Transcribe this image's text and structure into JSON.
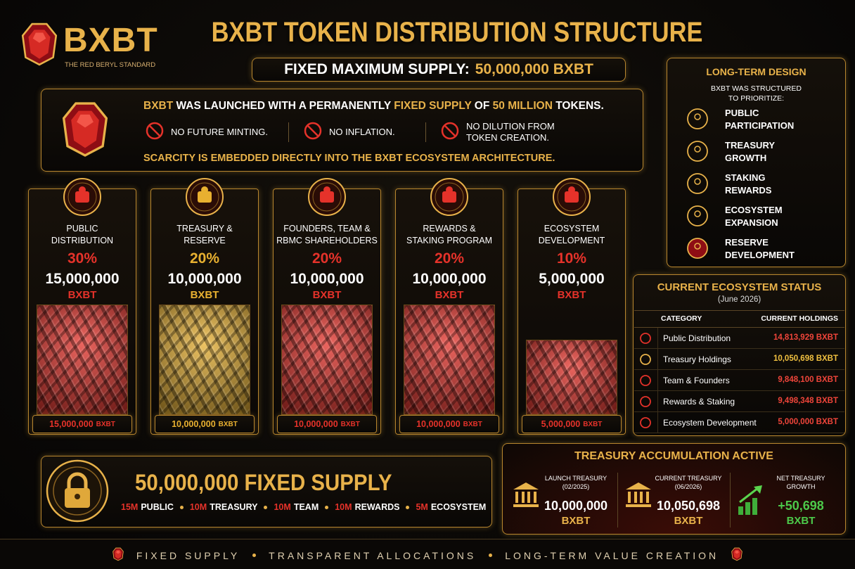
{
  "header": {
    "logo": "BXBT",
    "tagline": "THE RED BERYL STANDARD",
    "title": "BXBT TOKEN DISTRIBUTION STRUCTURE",
    "supply_label": "FIXED MAXIMUM SUPPLY:",
    "supply_value": "50,000,000 BXBT"
  },
  "intro": {
    "headline": [
      {
        "text": "BXBT",
        "gold": true
      },
      {
        "text": " WAS LAUNCHED WITH A PERMANENTLY ",
        "gold": false
      },
      {
        "text": "FIXED SUPPLY",
        "gold": true
      },
      {
        "text": " OF ",
        "gold": false
      },
      {
        "text": "50 MILLION",
        "gold": true
      },
      {
        "text": " TOKENS.",
        "gold": false
      }
    ],
    "features": [
      [
        "NO FUTURE MINTING."
      ],
      [
        "NO INFLATION."
      ],
      [
        "NO DILUTION FROM",
        "TOKEN CREATION."
      ]
    ],
    "closing": "SCARCITY IS EMBEDDED DIRECTLY INTO THE BXBT ECOSYSTEM ARCHITECTURE."
  },
  "allocations": [
    {
      "label": [
        "PUBLIC",
        "DISTRIBUTION"
      ],
      "percent": "30%",
      "amount": "15,000,000",
      "unit": "BXBT",
      "color": "#e5322a"
    },
    {
      "label": [
        "TREASURY &",
        "RESERVE"
      ],
      "percent": "20%",
      "amount": "10,000,000",
      "unit": "BXBT",
      "color": "#e8b030"
    },
    {
      "label": [
        "FOUNDERS, TEAM &",
        "RBMC SHAREHOLDERS"
      ],
      "percent": "20%",
      "amount": "10,000,000",
      "unit": "BXBT",
      "color": "#e5322a"
    },
    {
      "label": [
        "REWARDS &",
        "STAKING PROGRAM"
      ],
      "percent": "20%",
      "amount": "10,000,000",
      "unit": "BXBT",
      "color": "#e5322a"
    },
    {
      "label": [
        "ECOSYSTEM",
        "DEVELOPMENT"
      ],
      "percent": "10%",
      "amount": "5,000,000",
      "unit": "BXBT",
      "color": "#e5322a"
    }
  ],
  "long_term": {
    "title": "LONG-TERM DESIGN",
    "subtitle": [
      "BXBT WAS STRUCTURED",
      "TO PRIORITIZE:"
    ],
    "items": [
      [
        "PUBLIC",
        "PARTICIPATION"
      ],
      [
        "TREASURY",
        "GROWTH"
      ],
      [
        "STAKING",
        "REWARDS"
      ],
      [
        "ECOSYSTEM",
        "EXPANSION"
      ],
      [
        "RESERVE",
        "DEVELOPMENT"
      ]
    ]
  },
  "status": {
    "title": "CURRENT ECOSYSTEM STATUS",
    "date": "(June 2026)",
    "columns": [
      "CATEGORY",
      "CURRENT HOLDINGS"
    ],
    "rows": [
      {
        "category": "Public Distribution",
        "holdings": "14,813,929 BXBT",
        "color": "#f0453a"
      },
      {
        "category": "Treasury Holdings",
        "holdings": "10,050,698 BXBT",
        "color": "#f0c040"
      },
      {
        "category": "Team & Founders",
        "holdings": "9,848,100 BXBT",
        "color": "#f0453a"
      },
      {
        "category": "Rewards & Staking",
        "holdings": "9,498,348 BXBT",
        "color": "#f0453a"
      },
      {
        "category": "Ecosystem Development",
        "holdings": "5,000,000 BXBT",
        "color": "#f0453a"
      }
    ]
  },
  "supply": {
    "headline": "50,000,000 FIXED SUPPLY",
    "breakdown": [
      {
        "amount": "15M",
        "label": "PUBLIC"
      },
      {
        "amount": "10M",
        "label": "TREASURY"
      },
      {
        "amount": "10M",
        "label": "TEAM"
      },
      {
        "amount": "10M",
        "label": "REWARDS"
      },
      {
        "amount": "5M",
        "label": "ECOSYSTEM"
      }
    ]
  },
  "treasury": {
    "title": "TREASURY ACCUMULATION ACTIVE",
    "items": [
      {
        "label": [
          "LAUNCH TREASURY",
          "(02/2025)"
        ],
        "value": "10,000,000",
        "unit": "BXBT",
        "color": "#ffffff"
      },
      {
        "label": [
          "CURRENT TREASURY",
          "(06/2026)"
        ],
        "value": "10,050,698",
        "unit": "BXBT",
        "color": "#ffffff"
      },
      {
        "label": [
          "NET TREASURY",
          "GROWTH"
        ],
        "value": "+50,698",
        "unit": "BXBT",
        "color": "#4cc94a"
      }
    ]
  },
  "footer": [
    "FIXED SUPPLY",
    "TRANSPARENT ALLOCATIONS",
    "LONG-TERM VALUE CREATION"
  ]
}
